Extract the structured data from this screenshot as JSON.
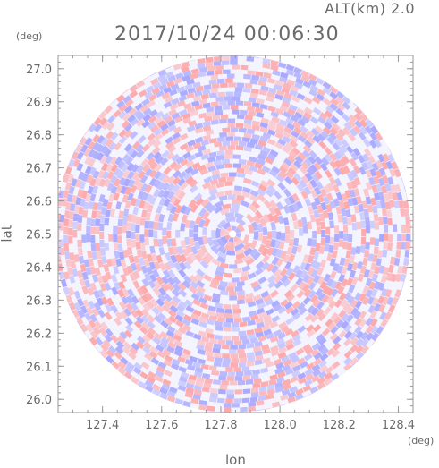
{
  "header": {
    "altitude": "ALT(km) 2.0",
    "timestamp": "2017/10/24 00:06:30"
  },
  "units": {
    "y_unit": "(deg)",
    "x_unit": "(deg)"
  },
  "chart_data": {
    "type": "heatmap",
    "title": "",
    "xlabel": "lon",
    "ylabel": "lat",
    "xlim": [
      127.25,
      128.45
    ],
    "ylim": [
      25.96,
      27.04
    ],
    "x_ticks": [
      127.4,
      127.6,
      127.8,
      128.0,
      128.2,
      128.4
    ],
    "x_tick_labels": [
      "127.4",
      "127.6",
      "127.8",
      "128.0",
      "128.2",
      "128.4"
    ],
    "y_ticks": [
      26.0,
      26.1,
      26.2,
      26.3,
      26.4,
      26.5,
      26.6,
      26.7,
      26.8,
      26.9,
      27.0
    ],
    "y_tick_labels": [
      "26.0",
      "26.1",
      "26.2",
      "26.3",
      "26.4",
      "26.5",
      "26.6",
      "26.7",
      "26.8",
      "26.9",
      "27.0"
    ],
    "center": {
      "lon": 127.84,
      "lat": 26.5
    },
    "radius_deg_lat": 0.54,
    "grid": false,
    "legend": "none",
    "colors": {
      "positive": "#ff9a9a",
      "negative": "#9a9aff",
      "neutral": "#f4f4ff",
      "axis": "#9a9a9a"
    }
  }
}
